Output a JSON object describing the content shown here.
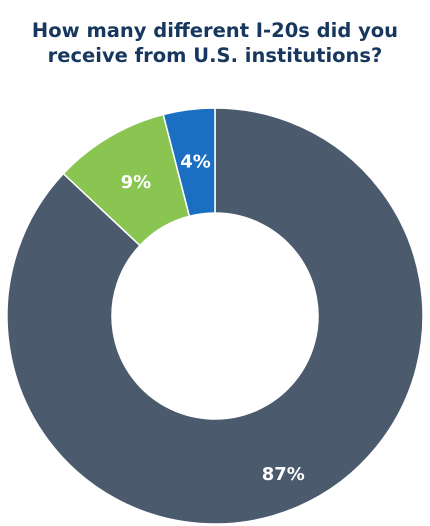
{
  "chart_data": {
    "type": "pie",
    "title_lines": [
      "How many different I-20s did you",
      "receive from U.S. institutions?"
    ],
    "slices": [
      {
        "value": 87,
        "label": "87%",
        "color": "#4b5a6c"
      },
      {
        "value": 9,
        "label": "9%",
        "color": "#8bc551"
      },
      {
        "value": 4,
        "label": "4%",
        "color": "#1b6fc2"
      }
    ],
    "colors": {
      "title": "#17375e",
      "label": "#ffffff",
      "background": "#ffffff"
    }
  }
}
